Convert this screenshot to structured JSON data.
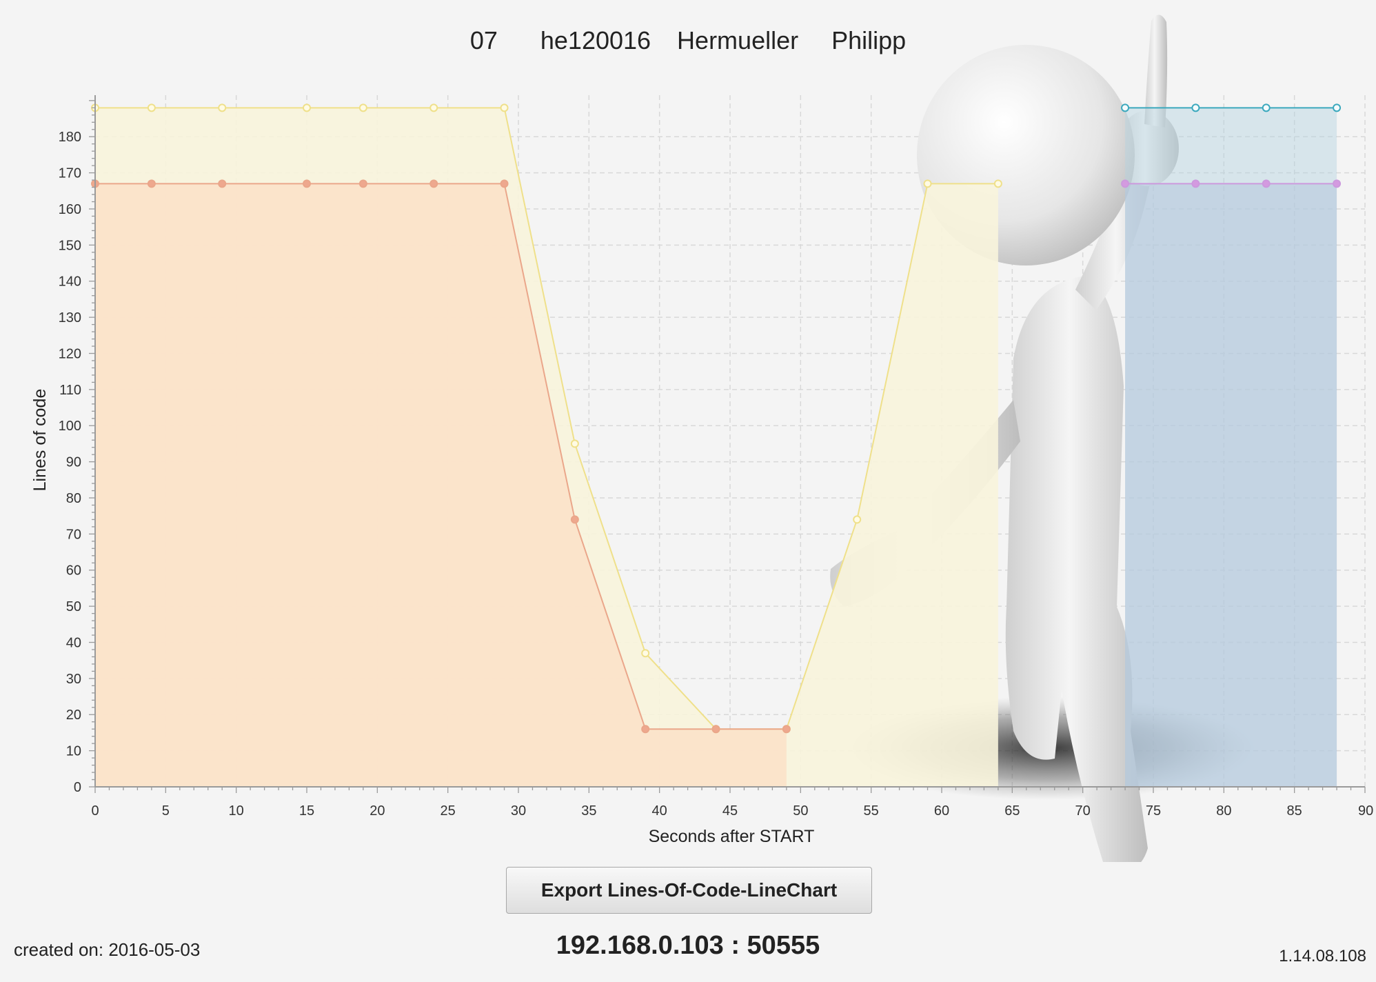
{
  "header": {
    "number": "07",
    "user_id": "he120016",
    "last_name": "Hermueller",
    "first_name": "Philipp"
  },
  "chart_data": {
    "type": "area",
    "title": "",
    "xlabel": "Seconds after START",
    "ylabel": "Lines of code",
    "xlim": [
      0,
      90
    ],
    "ylim": [
      0,
      190
    ],
    "x_ticks": [
      0,
      5,
      10,
      15,
      20,
      25,
      30,
      35,
      40,
      45,
      50,
      55,
      60,
      65,
      70,
      75,
      80,
      85,
      90
    ],
    "y_ticks": [
      0,
      10,
      20,
      30,
      40,
      50,
      60,
      70,
      80,
      90,
      100,
      110,
      120,
      130,
      140,
      150,
      160,
      170,
      180
    ],
    "grid": true,
    "legend": "none",
    "series": [
      {
        "line_color": "#efe08a",
        "fill_color": "#f8f4dc",
        "fill_opacity": 0.9,
        "marker_fill": "#fffbe4",
        "x": [
          0,
          4,
          9,
          15,
          19,
          24,
          29,
          34,
          39,
          44,
          49,
          54,
          59,
          64
        ],
        "y": [
          188,
          188,
          188,
          188,
          188,
          188,
          188,
          95,
          37,
          16,
          16,
          74,
          167,
          167
        ]
      },
      {
        "line_color": "#eaa68a",
        "fill_color": "#fbe2c9",
        "fill_opacity": 0.93,
        "marker_fill": "#eea88e",
        "x": [
          0,
          4,
          9,
          15,
          19,
          24,
          29,
          34,
          39,
          44,
          49
        ],
        "y": [
          167,
          167,
          167,
          167,
          167,
          167,
          167,
          74,
          16,
          16,
          16
        ]
      },
      {
        "line_color": "#3aa8bd",
        "fill_color": "#b4d3e0",
        "fill_opacity": 0.45,
        "marker_fill": "#f4fbfc",
        "x": [
          73,
          78,
          83,
          88
        ],
        "y": [
          188,
          188,
          188,
          188
        ]
      },
      {
        "line_color": "#cc99dd",
        "fill_color": "#b5c6dc",
        "fill_opacity": 0.55,
        "marker_fill": "#d49ae0",
        "x": [
          73,
          78,
          83,
          88
        ],
        "y": [
          167,
          167,
          167,
          167
        ]
      }
    ]
  },
  "export_button_label": "Export Lines-Of-Code-LineChart",
  "created_on": "created on: 2016-05-03",
  "ip_address": "192.168.0.103 : 50555",
  "version": "1.14.08.108",
  "overlay_figure": "white-3d-figure-pointing-up"
}
